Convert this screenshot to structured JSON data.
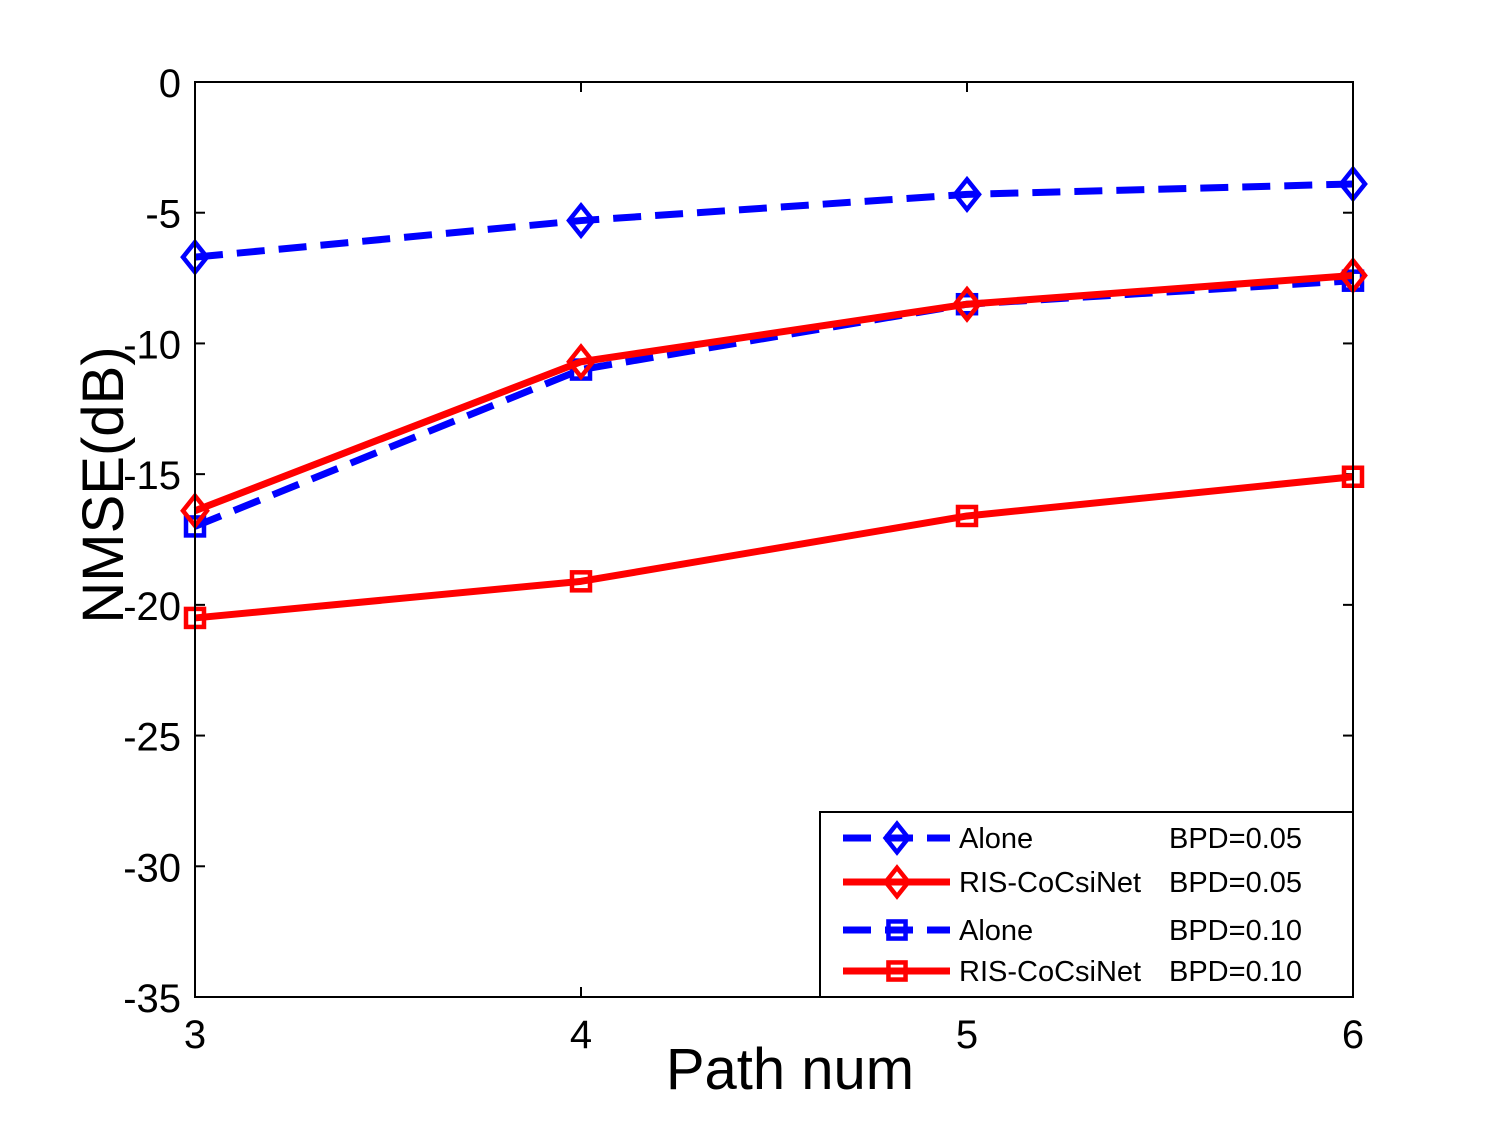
{
  "chart_data": {
    "type": "line",
    "xlabel": "Path num",
    "ylabel": "NMSE(dB)",
    "x": [
      3,
      4,
      5,
      6
    ],
    "xlim": [
      3,
      6
    ],
    "ylim": [
      -35,
      0
    ],
    "xticks": [
      "3",
      "4",
      "5",
      "6"
    ],
    "yticks": [
      "0",
      "-5",
      "-10",
      "-15",
      "-20",
      "-25",
      "-30",
      "-35"
    ],
    "grid": false,
    "legend_position": "bottom-right",
    "series": [
      {
        "name": "Alone",
        "bpd": "BPD=0.05",
        "color": "#0000ff",
        "line": "dashed",
        "marker": "diamond",
        "values": [
          -6.7,
          -5.3,
          -4.3,
          -3.9
        ]
      },
      {
        "name": "RIS-CoCsiNet",
        "bpd": "BPD=0.05",
        "color": "#ff0000",
        "line": "solid",
        "marker": "diamond",
        "values": [
          -16.4,
          -10.7,
          -8.5,
          -7.4
        ]
      },
      {
        "name": "Alone",
        "bpd": "BPD=0.10",
        "color": "#0000ff",
        "line": "dashed",
        "marker": "square",
        "values": [
          -17.0,
          -11.0,
          -8.5,
          -7.6
        ]
      },
      {
        "name": "RIS-CoCsiNet",
        "bpd": "BPD=0.10",
        "color": "#ff0000",
        "line": "solid",
        "marker": "square",
        "values": [
          -20.5,
          -19.1,
          -16.6,
          -15.1
        ]
      }
    ]
  }
}
